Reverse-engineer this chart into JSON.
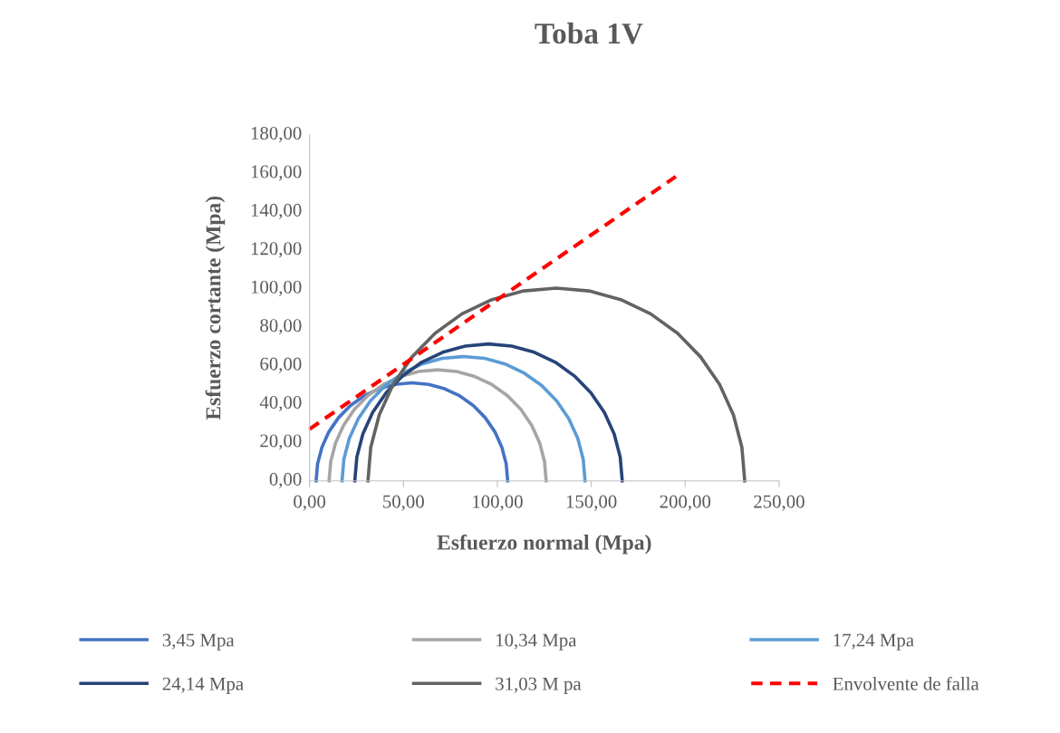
{
  "chart_data": {
    "type": "line",
    "title": "Toba 1V",
    "xlabel": "Esfuerzo normal (Mpa)",
    "ylabel": "Esfuerzo cortante (Mpa)",
    "xlim": [
      0,
      250
    ],
    "ylim": [
      0,
      180
    ],
    "xticks": [
      {
        "value": 0,
        "label": "0,00"
      },
      {
        "value": 50,
        "label": "50,00"
      },
      {
        "value": 100,
        "label": "100,00"
      },
      {
        "value": 150,
        "label": "150,00"
      },
      {
        "value": 200,
        "label": "200,00"
      },
      {
        "value": 250,
        "label": "250,00"
      }
    ],
    "yticks": [
      {
        "value": 0,
        "label": "0,00"
      },
      {
        "value": 20,
        "label": "20,00"
      },
      {
        "value": 40,
        "label": "40,00"
      },
      {
        "value": 60,
        "label": "60,00"
      },
      {
        "value": 80,
        "label": "80,00"
      },
      {
        "value": 100,
        "label": "100,00"
      },
      {
        "value": 120,
        "label": "120,00"
      },
      {
        "value": 140,
        "label": "140,00"
      },
      {
        "value": 160,
        "label": "160,00"
      },
      {
        "value": 180,
        "label": "180,00"
      }
    ],
    "grid": false,
    "legend": "bottom",
    "marker": "none",
    "series": [
      {
        "name": "3,45 Mpa",
        "color": "#4472c4",
        "x": [
          3.5,
          4.3,
          6.6,
          10.3,
          15.4,
          21.7,
          29.0,
          37.1,
          45.6,
          54.5,
          63.4,
          71.9,
          80.0,
          87.3,
          93.6,
          98.7,
          102.4,
          104.7,
          105.5
        ],
        "values": [
          0,
          8.9,
          17.4,
          25.5,
          32.8,
          39.1,
          44.2,
          47.9,
          50.2,
          51.0,
          50.2,
          47.9,
          44.2,
          39.1,
          32.8,
          25.5,
          17.4,
          8.9,
          0
        ]
      },
      {
        "name": "10,34 Mpa",
        "color": "#a5a5a5",
        "x": [
          10.4,
          11.3,
          13.9,
          18.1,
          23.9,
          31.0,
          39.3,
          48.4,
          58.1,
          68.2,
          78.3,
          88.0,
          97.1,
          105.4,
          112.5,
          118.3,
          122.5,
          125.1,
          126.0
        ],
        "values": [
          0,
          10.1,
          19.8,
          28.9,
          37.2,
          44.3,
          50.1,
          54.3,
          56.9,
          57.8,
          56.9,
          54.3,
          50.1,
          44.3,
          37.2,
          28.9,
          19.8,
          10.1,
          0
        ]
      },
      {
        "name": "17,24 Mpa",
        "color": "#5b9bd5",
        "x": [
          17.3,
          18.3,
          21.2,
          26.0,
          32.4,
          40.4,
          49.6,
          59.9,
          70.7,
          82.0,
          93.3,
          104.1,
          114.4,
          123.6,
          131.6,
          138.0,
          142.8,
          145.7,
          146.7
        ],
        "values": [
          0,
          11.3,
          22.1,
          32.4,
          41.6,
          49.6,
          56.0,
          60.8,
          63.7,
          64.7,
          63.7,
          60.8,
          56.0,
          49.6,
          41.6,
          32.4,
          22.1,
          11.3,
          0
        ]
      },
      {
        "name": "24,14 Mpa",
        "color": "#264478",
        "x": [
          24.1,
          25.2,
          28.4,
          33.6,
          40.8,
          49.5,
          59.7,
          70.9,
          82.9,
          95.3,
          107.7,
          119.7,
          130.9,
          141.1,
          149.8,
          157.0,
          162.2,
          165.4,
          166.5
        ],
        "values": [
          0,
          12.4,
          24.4,
          35.6,
          45.8,
          54.5,
          61.7,
          66.9,
          70.1,
          71.2,
          70.1,
          66.9,
          61.7,
          54.5,
          45.8,
          35.6,
          24.4,
          12.4,
          0
        ]
      },
      {
        "name": "31,03 M pa",
        "color": "#636363",
        "x": [
          31.1,
          32.6,
          37.1,
          44.5,
          54.6,
          66.9,
          81.2,
          97.1,
          114.0,
          131.4,
          148.8,
          165.7,
          181.6,
          195.9,
          208.2,
          218.3,
          225.7,
          230.2,
          231.7
        ],
        "values": [
          0,
          17.4,
          34.3,
          50.2,
          64.5,
          76.8,
          86.9,
          94.3,
          98.8,
          100.3,
          98.8,
          94.3,
          86.9,
          76.8,
          64.5,
          50.2,
          34.3,
          17.4,
          0
        ]
      },
      {
        "name": "Envolvente de falla",
        "color": "#ff0000",
        "line_style": "dashed",
        "x": [
          0,
          195
        ],
        "values": [
          26.9,
          158.3
        ]
      }
    ]
  }
}
